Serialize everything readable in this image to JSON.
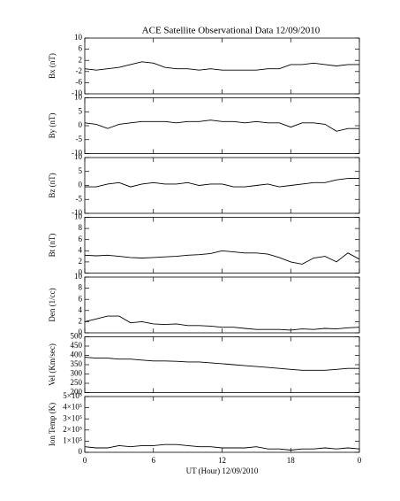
{
  "chart_data": [
    {
      "type": "line",
      "title": "ACE Satellite Observational Data   12/09/2010",
      "ylabel": "Bx (nT)",
      "x": [
        0,
        1,
        2,
        3,
        4,
        5,
        6,
        7,
        8,
        9,
        10,
        11,
        12,
        13,
        14,
        15,
        16,
        17,
        18,
        19,
        20,
        21,
        22,
        23,
        24
      ],
      "series": [
        {
          "color": "#000000",
          "values": [
            -1,
            -1.5,
            -1,
            -0.5,
            0.5,
            1.5,
            1,
            -0.5,
            -1,
            -1,
            -1.5,
            -1,
            -1.5,
            -1.5,
            -1.5,
            -1.5,
            -1,
            -1,
            0.5,
            0.5,
            1,
            0.5,
            0,
            0.5,
            0.5
          ]
        }
      ],
      "xlim": [
        0,
        24
      ],
      "xticks": [
        0,
        6,
        12,
        18,
        {
          "value": 24,
          "label": "0"
        }
      ],
      "ylim": [
        -10,
        10
      ],
      "yticks": [
        10,
        6,
        2,
        -2,
        -6,
        -10
      ]
    },
    {
      "type": "line",
      "ylabel": "By (nT)",
      "x": [
        0,
        1,
        2,
        3,
        4,
        5,
        6,
        7,
        8,
        9,
        10,
        11,
        12,
        13,
        14,
        15,
        16,
        17,
        18,
        19,
        20,
        21,
        22,
        23,
        24
      ],
      "series": [
        {
          "color": "#000000",
          "values": [
            1,
            0.5,
            -1,
            0.5,
            1,
            1.5,
            1.5,
            1.5,
            1,
            1.5,
            1.5,
            2,
            1.5,
            1.5,
            1,
            1.5,
            1,
            1,
            -0.5,
            1,
            1,
            0.5,
            -2,
            -1,
            -1
          ]
        }
      ],
      "xlim": [
        0,
        24
      ],
      "xticks": [
        0,
        6,
        12,
        18,
        {
          "value": 24,
          "label": "0"
        }
      ],
      "ylim": [
        -10,
        10
      ],
      "yticks": [
        10,
        5,
        0,
        -5,
        -10
      ]
    },
    {
      "type": "line",
      "ylabel": "Bz (nT)",
      "x": [
        0,
        1,
        2,
        3,
        4,
        5,
        6,
        7,
        8,
        9,
        10,
        11,
        12,
        13,
        14,
        15,
        16,
        17,
        18,
        19,
        20,
        21,
        22,
        23,
        24
      ],
      "series": [
        {
          "color": "#000000",
          "values": [
            -0.5,
            -0.5,
            0.5,
            1,
            -0.5,
            0.5,
            1,
            0.5,
            0.5,
            1,
            0,
            0.5,
            0.5,
            -0.5,
            -0.5,
            0,
            0.5,
            -0.5,
            0,
            0.5,
            1,
            1,
            2,
            2.5,
            2.5
          ]
        }
      ],
      "xlim": [
        0,
        24
      ],
      "xticks": [
        0,
        6,
        12,
        18,
        {
          "value": 24,
          "label": "0"
        }
      ],
      "ylim": [
        -10,
        10
      ],
      "yticks": [
        10,
        5,
        0,
        -5,
        -10
      ]
    },
    {
      "type": "line",
      "ylabel": "Bt (nT)",
      "x": [
        0,
        1,
        2,
        3,
        4,
        5,
        6,
        7,
        8,
        9,
        10,
        11,
        12,
        13,
        14,
        15,
        16,
        17,
        18,
        19,
        20,
        21,
        22,
        23,
        24
      ],
      "series": [
        {
          "color": "#000000",
          "values": [
            3.2,
            3.1,
            3.2,
            3,
            2.8,
            2.7,
            2.8,
            2.9,
            3,
            3.2,
            3.3,
            3.5,
            4,
            3.8,
            3.6,
            3.6,
            3.4,
            2.8,
            2,
            1.6,
            2.7,
            3,
            2,
            3.6,
            2.5
          ]
        }
      ],
      "xlim": [
        0,
        24
      ],
      "xticks": [
        0,
        6,
        12,
        18,
        {
          "value": 24,
          "label": "0"
        }
      ],
      "ylim": [
        0,
        10
      ],
      "yticks": [
        10,
        8,
        6,
        4,
        2,
        0
      ]
    },
    {
      "type": "line",
      "ylabel": "Den (1/cc)",
      "x": [
        0,
        1,
        2,
        3,
        4,
        5,
        6,
        7,
        8,
        9,
        10,
        11,
        12,
        13,
        14,
        15,
        16,
        17,
        18,
        19,
        20,
        21,
        22,
        23,
        24
      ],
      "series": [
        {
          "color": "#000000",
          "values": [
            2,
            2.5,
            3,
            3,
            1.8,
            2,
            1.6,
            1.5,
            1.6,
            1.3,
            1.3,
            1.2,
            1,
            1,
            0.8,
            0.6,
            0.6,
            0.6,
            0.5,
            0.7,
            0.6,
            0.8,
            0.7,
            0.9,
            1
          ]
        }
      ],
      "xlim": [
        0,
        24
      ],
      "xticks": [
        0,
        6,
        12,
        18,
        {
          "value": 24,
          "label": "0"
        }
      ],
      "ylim": [
        0,
        10
      ],
      "yticks": [
        10,
        8,
        6,
        4,
        2,
        0
      ]
    },
    {
      "type": "line",
      "ylabel": "Vel (Km/sec)",
      "x": [
        0,
        1,
        2,
        3,
        4,
        5,
        6,
        7,
        8,
        9,
        10,
        11,
        12,
        13,
        14,
        15,
        16,
        17,
        18,
        19,
        20,
        21,
        22,
        23,
        24
      ],
      "series": [
        {
          "color": "#000000",
          "values": [
            390,
            385,
            385,
            380,
            380,
            375,
            370,
            370,
            368,
            365,
            365,
            360,
            355,
            350,
            345,
            340,
            335,
            330,
            325,
            320,
            320,
            320,
            325,
            330,
            330
          ]
        }
      ],
      "xlim": [
        0,
        24
      ],
      "xticks": [
        0,
        6,
        12,
        18,
        {
          "value": 24,
          "label": "0"
        }
      ],
      "ylim": [
        200,
        500
      ],
      "yticks": [
        500,
        450,
        400,
        350,
        300,
        250,
        200
      ]
    },
    {
      "type": "line",
      "ylabel": "Ion Temp (K)",
      "xlabel": "UT (Hour)   12/09/2010",
      "x": [
        0,
        1,
        2,
        3,
        4,
        5,
        6,
        7,
        8,
        9,
        10,
        11,
        12,
        13,
        14,
        15,
        16,
        17,
        18,
        19,
        20,
        21,
        22,
        23,
        24
      ],
      "series": [
        {
          "color": "#000000",
          "values": [
            50000,
            40000,
            40000,
            60000,
            50000,
            60000,
            60000,
            70000,
            70000,
            60000,
            50000,
            50000,
            40000,
            40000,
            40000,
            50000,
            30000,
            30000,
            20000,
            30000,
            30000,
            40000,
            30000,
            40000,
            30000
          ]
        }
      ],
      "xlim": [
        0,
        24
      ],
      "xticks": [
        0,
        6,
        12,
        18,
        {
          "value": 24,
          "label": "0"
        }
      ],
      "ylim": [
        0,
        500000
      ],
      "yticks": [
        {
          "value": 500000,
          "label": "5×10⁵"
        },
        {
          "value": 400000,
          "label": "4×10⁵"
        },
        {
          "value": 300000,
          "label": "3×10⁵"
        },
        {
          "value": 200000,
          "label": "2×10⁵"
        },
        {
          "value": 100000,
          "label": "1×10⁵"
        },
        0
      ]
    }
  ]
}
